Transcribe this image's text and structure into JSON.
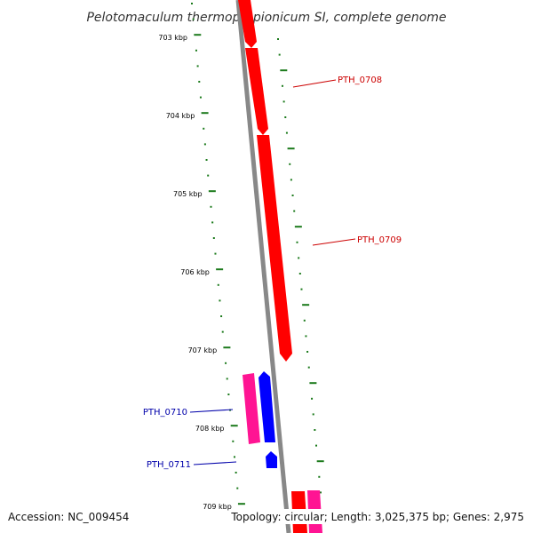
{
  "title": "Pelotomaculum thermopropionicum SI, complete genome",
  "footer": {
    "accession": "Accession: NC_009454",
    "topology": "Topology: circular; Length: 3,025,375 bp; Genes: 2,975"
  },
  "colors": {
    "backbone": "#888888",
    "tick": "#1b7a1b",
    "gene_red": "#ff0000",
    "gene_pink": "#ff1493",
    "gene_blue": "#0000ff",
    "label_red": "#cc0000",
    "label_blue": "#0000aa"
  },
  "kbp_labels": [
    "703 kbp",
    "704 kbp",
    "705 kbp",
    "706 kbp",
    "707 kbp",
    "708 kbp",
    "709 kbp"
  ],
  "genes": [
    {
      "label": "PTH_0708",
      "color": "gene_red",
      "label_color": "label_red",
      "side": "right"
    },
    {
      "label": "PTH_0709",
      "color": "gene_red",
      "label_color": "label_red",
      "side": "right"
    },
    {
      "label": "PTH_0710",
      "color": "gene_pink",
      "label_color": "label_blue",
      "side": "left"
    },
    {
      "label": "PTH_0711",
      "color": "gene_blue",
      "label_color": "label_blue",
      "side": "left"
    }
  ]
}
